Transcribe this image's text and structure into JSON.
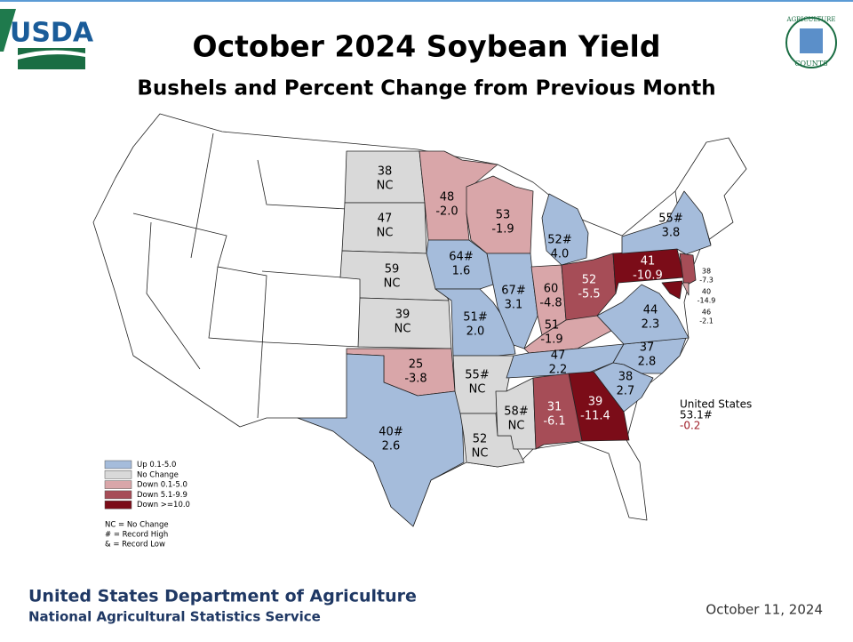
{
  "header": {
    "title": "October 2024 Soybean Yield",
    "subtitle": "Bushels and Percent Change from Previous Month"
  },
  "logos": {
    "usda": "USDA",
    "counts_top": "AGRICULTURE",
    "counts_bottom": "COUNTS"
  },
  "legend": [
    {
      "label": "Up 0.1-5.0",
      "color": "#a5bcdb"
    },
    {
      "label": "No Change",
      "color": "#d9d9d9"
    },
    {
      "label": "Down 0.1-5.0",
      "color": "#d9a6a9"
    },
    {
      "label": "Down 5.1-9.9",
      "color": "#a64d57"
    },
    {
      "label": "Down >=10.0",
      "color": "#7b0c18"
    }
  ],
  "notes": [
    "NC = No Change",
    "# = Record High",
    "& = Record Low"
  ],
  "states": [
    {
      "yield": "38",
      "change": "NC",
      "color": "#d9d9d9"
    },
    {
      "yield": "47",
      "change": "NC",
      "color": "#d9d9d9"
    },
    {
      "yield": "59",
      "change": "NC",
      "color": "#d9d9d9"
    },
    {
      "yield": "39",
      "change": "NC",
      "color": "#d9d9d9"
    },
    {
      "yield": "25",
      "change": "-3.8",
      "color": "#d9a6a9"
    },
    {
      "yield": "40#",
      "change": "2.6",
      "color": "#a5bcdb"
    },
    {
      "yield": "48",
      "change": "-2.0",
      "color": "#d9a6a9"
    },
    {
      "yield": "64#",
      "change": "1.6",
      "color": "#a5bcdb"
    },
    {
      "yield": "51#",
      "change": "2.0",
      "color": "#a5bcdb"
    },
    {
      "yield": "55#",
      "change": "NC",
      "color": "#d9d9d9"
    },
    {
      "yield": "52",
      "change": "NC",
      "color": "#d9d9d9"
    },
    {
      "yield": "58#",
      "change": "NC",
      "color": "#d9d9d9"
    },
    {
      "yield": "53",
      "change": "-1.9",
      "color": "#d9a6a9"
    },
    {
      "yield": "67#",
      "change": "3.1",
      "color": "#a5bcdb"
    },
    {
      "yield": "60",
      "change": "-4.8",
      "color": "#d9a6a9"
    },
    {
      "yield": "52#",
      "change": "4.0",
      "color": "#a5bcdb"
    },
    {
      "yield": "52",
      "change": "-5.5",
      "color": "#a64d57"
    },
    {
      "yield": "51",
      "change": "-1.9",
      "color": "#d9a6a9"
    },
    {
      "yield": "47",
      "change": "2.2",
      "color": "#a5bcdb"
    },
    {
      "yield": "37",
      "change": "2.8",
      "color": "#a5bcdb"
    },
    {
      "yield": "38",
      "change": "2.7",
      "color": "#a5bcdb"
    },
    {
      "yield": "39",
      "change": "-11.4",
      "color": "#7b0c18"
    },
    {
      "yield": "31",
      "change": "-6.1",
      "color": "#a64d57"
    },
    {
      "yield": "44",
      "change": "2.3",
      "color": "#a5bcdb"
    },
    {
      "yield": "41",
      "change": "-10.9",
      "color": "#7b0c18"
    },
    {
      "yield": "55#",
      "change": "3.8",
      "color": "#a5bcdb"
    },
    {
      "yield": "38",
      "change": "-7.3",
      "color": "#a64d57"
    },
    {
      "yield": "40",
      "change": "-14.9",
      "color": "#7b0c18"
    },
    {
      "yield": "46",
      "change": "-2.1",
      "color": "#d9a6a9"
    }
  ],
  "us_total": {
    "label": "United States",
    "yield": "53.1#",
    "change": "-0.2"
  },
  "footer": {
    "agency": "United States Department of Agriculture",
    "service": "National Agricultural Statistics Service",
    "date": "October 11, 2024"
  }
}
